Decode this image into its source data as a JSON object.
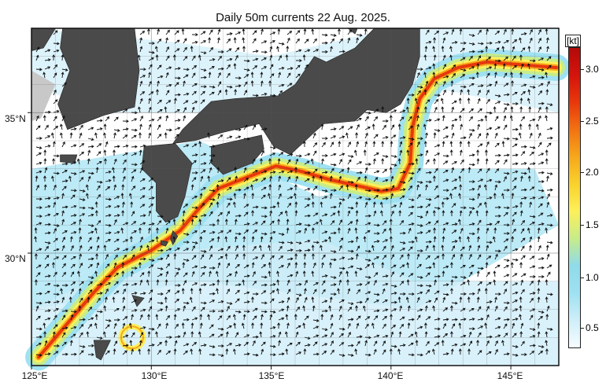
{
  "title": "Daily 50m currents 22 Aug. 2025.",
  "map": {
    "lat_labels": [
      "35°N",
      "30°N"
    ],
    "lon_labels": [
      "125°E",
      "130°E",
      "135°E",
      "140°E",
      "145°E"
    ],
    "lat_range": [
      26,
      38
    ],
    "lon_range": [
      125,
      147
    ],
    "grid": true,
    "colors": {
      "land": "#4a4a4a",
      "shelf": "#c8c8c8",
      "ocean": "#ffffff",
      "arrow": "#111111"
    }
  },
  "colorbar": {
    "unit": "[kt]",
    "ticks": [
      "0.5",
      "1.0",
      "1.5",
      "2.0",
      "2.5",
      "3.0"
    ],
    "range": [
      0.25,
      3.25
    ],
    "colors": [
      "#f6fcff",
      "#cfeef9",
      "#9fe1f2",
      "#8fdbea",
      "#c7ec8a",
      "#fdf05a",
      "#f9d22c",
      "#f6a81c",
      "#f27312",
      "#e8380c",
      "#d4140c",
      "#b30a0a"
    ]
  }
}
